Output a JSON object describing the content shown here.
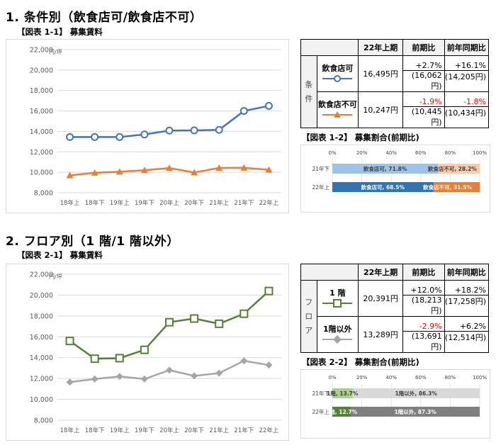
{
  "section1": {
    "heading": "1. 条件別（飲食店可/飲食店不可）",
    "fig11": "【図表 1-1】 募集賃料",
    "fig12": "【図表 1-2】 募集割合(前期比)"
  },
  "section2": {
    "heading": "2. フロア別（1 階/1 階以外）",
    "fig21": "【図表 2-1】 募集賃料",
    "fig22": "【図表 2-2】 募集割合(前期比)"
  },
  "table1": {
    "headers": [
      "22年上期",
      "前期比",
      "前年同期比"
    ],
    "side_label": [
      "条",
      "件"
    ],
    "rows": [
      {
        "label": "飲食店可",
        "value": "16,495円",
        "prev_pct": "+2.7%",
        "prev_val": "(16,062円)",
        "yoy_pct": "+16.1%",
        "yoy_val": "(14,205円)",
        "prev_neg": false,
        "yoy_neg": false
      },
      {
        "label": "飲食店不可",
        "value": "10,247円",
        "prev_pct": "-1.9%",
        "prev_val": "(10,445円)",
        "yoy_pct": "-1.8%",
        "yoy_val": "(10,434円)",
        "prev_neg": true,
        "yoy_neg": true
      }
    ]
  },
  "table2": {
    "headers": [
      "22年上期",
      "前期比",
      "前年同期比"
    ],
    "side_label": [
      "フ",
      "ロ",
      "ア"
    ],
    "rows": [
      {
        "label": "1 階",
        "value": "20,391円",
        "prev_pct": "+12.0%",
        "prev_val": "(18,213円)",
        "yoy_pct": "+18.2%",
        "yoy_val": "(17,258円)",
        "prev_neg": false,
        "yoy_neg": false
      },
      {
        "label": "1階以外",
        "value": "13,289円",
        "prev_pct": "-2.9%",
        "prev_val": "(13,691円)",
        "yoy_pct": "+6.2%",
        "yoy_val": "(12,514円)",
        "prev_neg": true,
        "yoy_neg": false
      }
    ]
  },
  "colors": {
    "blue": "#4472c4",
    "orange": "#ed7d31",
    "green": "#548235",
    "gray": "#a5a5a5",
    "lightblue": "#9dc3e6",
    "medblue": "#2e75b6",
    "lightorange": "#f8cbad",
    "darkorange": "#ed7d31",
    "lightgreen": "#a9d18e",
    "darkgreen": "#548235",
    "lightgray": "#d9d9d9",
    "darkgray": "#7f7f7f"
  },
  "chart_data": [
    {
      "id": "fig11",
      "type": "line",
      "unit_label": "円/坪",
      "categories": [
        "18年上",
        "18年下",
        "19年上",
        "19年下",
        "20年上",
        "20年下",
        "21年上",
        "21年下",
        "22年上"
      ],
      "ylim": [
        8000,
        22000
      ],
      "yticks": [
        "8,000",
        "10,000",
        "12,000",
        "14,000",
        "16,000",
        "18,000",
        "20,000",
        "22,000"
      ],
      "grid": true,
      "series": [
        {
          "name": "飲食店可",
          "marker": "circle",
          "values": [
            13450,
            13450,
            13450,
            13700,
            14080,
            14100,
            14150,
            16000,
            16495
          ]
        },
        {
          "name": "飲食店不可",
          "marker": "triangle",
          "values": [
            9700,
            9950,
            10050,
            10200,
            10420,
            9980,
            10430,
            10445,
            10247
          ]
        }
      ]
    },
    {
      "id": "fig12",
      "type": "bar",
      "orientation": "horizontal-stacked",
      "xticks": [
        "0%",
        "20%",
        "40%",
        "60%",
        "80%",
        "100%"
      ],
      "categories": [
        "21年下",
        "22年上"
      ],
      "series": [
        {
          "name": "飲食店可",
          "values": [
            71.8,
            68.5
          ],
          "labels": [
            "飲食店可, 71.8%",
            "飲食店可, 68.5%"
          ]
        },
        {
          "name": "飲食店不可",
          "values": [
            28.2,
            31.5
          ],
          "labels": [
            "飲食店不可, 28.2%",
            "飲食店不可, 31.5%"
          ]
        }
      ]
    },
    {
      "id": "fig21",
      "type": "line",
      "unit_label": "円/坪",
      "categories": [
        "18年上",
        "18年下",
        "19年上",
        "19年下",
        "20年上",
        "20年下",
        "21年上",
        "21年下",
        "22年上"
      ],
      "ylim": [
        8000,
        22000
      ],
      "yticks": [
        "8,000",
        "10,000",
        "12,000",
        "14,000",
        "16,000",
        "18,000",
        "20,000",
        "22,000"
      ],
      "grid": true,
      "series": [
        {
          "name": "1 階",
          "marker": "square",
          "values": [
            15600,
            13900,
            13950,
            14750,
            17400,
            17750,
            17250,
            18213,
            20391
          ]
        },
        {
          "name": "1階以外",
          "marker": "diamond",
          "values": [
            11650,
            11950,
            12200,
            11950,
            12800,
            12250,
            12514,
            13691,
            13289
          ]
        }
      ]
    },
    {
      "id": "fig22",
      "type": "bar",
      "orientation": "horizontal-stacked",
      "xticks": [
        "0%",
        "20%",
        "40%",
        "60%",
        "80%",
        "100%"
      ],
      "categories": [
        "21年下",
        "22年上"
      ],
      "series": [
        {
          "name": "1階",
          "values": [
            13.7,
            12.7
          ],
          "labels": [
            "1階, 13.7%",
            "1階, 12.7%"
          ]
        },
        {
          "name": "1階以外",
          "values": [
            86.3,
            87.3
          ],
          "labels": [
            "1階以外, 86.3%",
            "1階以外, 87.3%"
          ]
        }
      ]
    }
  ]
}
